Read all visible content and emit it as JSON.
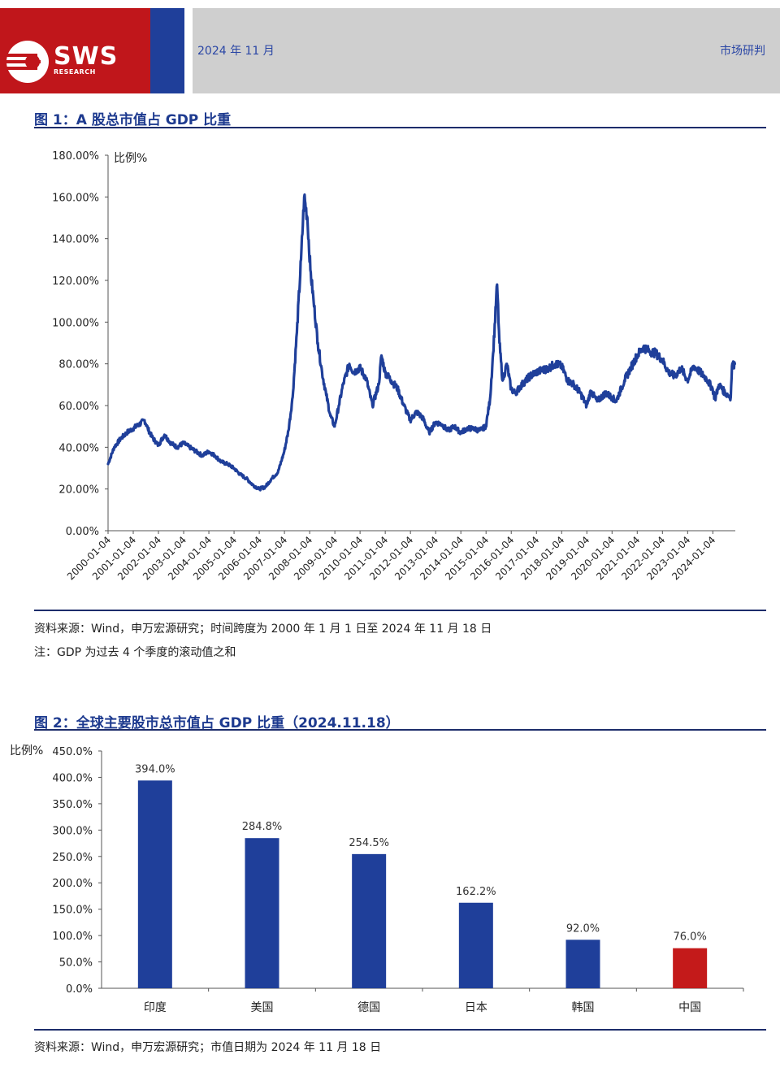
{
  "header": {
    "logo_text": "SWS",
    "logo_sub": "RESEARCH",
    "date": "2024 年 11 月",
    "section": "市场研判",
    "colors": {
      "red": "#c0161b",
      "blue": "#1f3f9a",
      "gray": "#cfcfcf"
    }
  },
  "figure1": {
    "title": "图 1：A 股总市值占 GDP 比重",
    "source": "资料来源：Wind，申万宏源研究；时间跨度为 2000 年 1 月 1 日至 2024 年 11 月 18 日",
    "note": "注：GDP 为过去 4 个季度的滚动值之和"
  },
  "figure2": {
    "title": "图 2：全球主要股市总市值占 GDP 比重（2024.11.18）",
    "source": "资料来源：Wind，申万宏源研究；市值日期为 2024 年 11 月 18 日"
  },
  "chart_data": [
    {
      "type": "line",
      "ylabel": "比例%",
      "ylim": [
        0,
        180
      ],
      "y_ticks": [
        "0.00%",
        "20.00%",
        "40.00%",
        "60.00%",
        "80.00%",
        "100.00%",
        "120.00%",
        "140.00%",
        "160.00%",
        "180.00%"
      ],
      "x_ticks": [
        "2000-01-04",
        "2001-01-04",
        "2002-01-04",
        "2003-01-04",
        "2004-01-04",
        "2005-01-04",
        "2006-01-04",
        "2007-01-04",
        "2008-01-04",
        "2009-01-04",
        "2010-01-04",
        "2011-01-04",
        "2012-01-04",
        "2013-01-04",
        "2014-01-04",
        "2015-01-04",
        "2016-01-04",
        "2017-01-04",
        "2018-01-04",
        "2019-01-04",
        "2020-01-04",
        "2021-01-04",
        "2022-01-04",
        "2023-01-04",
        "2024-01-04"
      ],
      "line_color": "#1f3f9a",
      "series": [
        {
          "x": [
            "2000-01-04",
            "2000-04-01",
            "2000-07-01",
            "2000-10-01",
            "2001-01-01",
            "2001-04-01",
            "2001-06-15",
            "2001-08-01",
            "2001-10-01",
            "2002-01-01",
            "2002-04-01",
            "2002-07-01",
            "2002-10-01",
            "2003-01-01",
            "2003-04-01",
            "2003-07-01",
            "2003-10-01",
            "2004-01-01",
            "2004-04-01",
            "2004-07-01",
            "2004-10-01",
            "2005-01-01",
            "2005-04-01",
            "2005-07-01",
            "2005-10-01",
            "2006-01-01",
            "2006-04-01",
            "2006-07-01",
            "2006-10-01",
            "2007-01-01",
            "2007-03-01",
            "2007-05-01",
            "2007-07-01",
            "2007-09-01",
            "2007-10-16",
            "2007-12-01",
            "2008-01-15",
            "2008-03-01",
            "2008-05-01",
            "2008-07-01",
            "2008-09-01",
            "2008-11-01",
            "2009-01-01",
            "2009-03-01",
            "2009-05-01",
            "2009-08-01",
            "2009-10-01",
            "2010-01-01",
            "2010-04-01",
            "2010-07-01",
            "2010-10-01",
            "2010-11-10",
            "2011-01-01",
            "2011-04-01",
            "2011-07-01",
            "2011-10-01",
            "2012-01-01",
            "2012-04-01",
            "2012-07-01",
            "2012-10-01",
            "2013-01-01",
            "2013-04-01",
            "2013-07-01",
            "2013-10-01",
            "2014-01-01",
            "2014-04-01",
            "2014-07-01",
            "2014-10-01",
            "2015-01-01",
            "2015-03-01",
            "2015-04-15",
            "2015-06-12",
            "2015-07-15",
            "2015-09-01",
            "2015-11-01",
            "2016-01-01",
            "2016-03-01",
            "2016-07-01",
            "2016-10-01",
            "2017-01-01",
            "2017-04-01",
            "2017-07-01",
            "2017-10-01",
            "2018-01-01",
            "2018-04-01",
            "2018-07-01",
            "2018-10-01",
            "2019-01-01",
            "2019-03-01",
            "2019-06-01",
            "2019-10-01",
            "2020-01-01",
            "2020-03-01",
            "2020-07-01",
            "2020-10-01",
            "2021-01-01",
            "2021-04-01",
            "2021-07-01",
            "2021-10-01",
            "2022-01-01",
            "2022-04-01",
            "2022-07-01",
            "2022-10-01",
            "2023-01-01",
            "2023-04-01",
            "2023-07-01",
            "2023-10-01",
            "2024-01-01",
            "2024-02-05",
            "2024-04-01",
            "2024-07-01",
            "2024-09-20",
            "2024-10-08",
            "2024-11-18"
          ],
          "values": [
            32,
            40,
            44,
            47,
            49,
            51,
            53,
            49,
            45,
            41,
            46,
            42,
            40,
            42,
            40,
            38,
            36,
            38,
            36,
            33,
            32,
            30,
            27,
            25,
            22,
            20,
            21,
            25,
            28,
            38,
            48,
            64,
            95,
            130,
            160,
            150,
            125,
            110,
            90,
            76,
            65,
            55,
            50,
            60,
            70,
            80,
            76,
            78,
            73,
            60,
            70,
            84,
            76,
            72,
            68,
            60,
            53,
            57,
            54,
            47,
            52,
            51,
            48,
            50,
            47,
            49,
            49,
            48,
            50,
            63,
            85,
            118,
            90,
            72,
            80,
            68,
            66,
            71,
            74,
            76,
            77,
            78,
            80,
            79,
            72,
            70,
            66,
            60,
            67,
            62,
            66,
            64,
            62,
            72,
            78,
            84,
            88,
            86,
            85,
            82,
            76,
            74,
            78,
            72,
            79,
            76,
            73,
            68,
            63,
            70,
            66,
            64,
            79,
            80
          ]
        }
      ]
    },
    {
      "type": "bar",
      "ylabel": "比例%",
      "ylim": [
        0,
        450
      ],
      "y_ticks": [
        "0.0%",
        "50.0%",
        "100.0%",
        "150.0%",
        "200.0%",
        "250.0%",
        "300.0%",
        "350.0%",
        "400.0%",
        "450.0%"
      ],
      "categories": [
        "印度",
        "美国",
        "德国",
        "日本",
        "韩国",
        "中国"
      ],
      "values": [
        394.0,
        284.8,
        254.5,
        162.2,
        92.0,
        76.0
      ],
      "data_labels": [
        "394.0%",
        "284.8%",
        "254.5%",
        "162.2%",
        "92.0%",
        "76.0%"
      ],
      "colors": [
        "#1f3f9a",
        "#1f3f9a",
        "#1f3f9a",
        "#1f3f9a",
        "#1f3f9a",
        "#c41a1a"
      ]
    }
  ]
}
